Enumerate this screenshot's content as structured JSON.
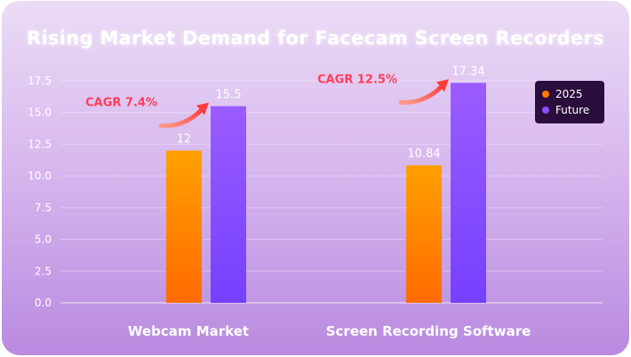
{
  "chart_data": {
    "type": "bar",
    "title": "Rising Market Demand for Facecam Screen Recorders",
    "categories": [
      "Webcam Market",
      "Screen Recording Software"
    ],
    "series": [
      {
        "name": "2025",
        "values": [
          12,
          10.84
        ],
        "labels": [
          "12",
          "10.84"
        ],
        "color": "#ff7a00"
      },
      {
        "name": "Future",
        "values": [
          15.5,
          17.34
        ],
        "labels": [
          "15.5",
          "17.34"
        ],
        "color": "#8a4dff"
      }
    ],
    "annotations": [
      "CAGR 7.4%",
      "CAGR 12.5%"
    ],
    "yticks": [
      "0.0",
      "2.5",
      "5.0",
      "7.5",
      "10.0",
      "12.5",
      "15.0",
      "17.5"
    ],
    "ylim": [
      0,
      17.5
    ],
    "grid": true,
    "legend_position": "top-right",
    "colors": {
      "annotation": "#ff3d5a",
      "grid": "#ffffff"
    }
  }
}
